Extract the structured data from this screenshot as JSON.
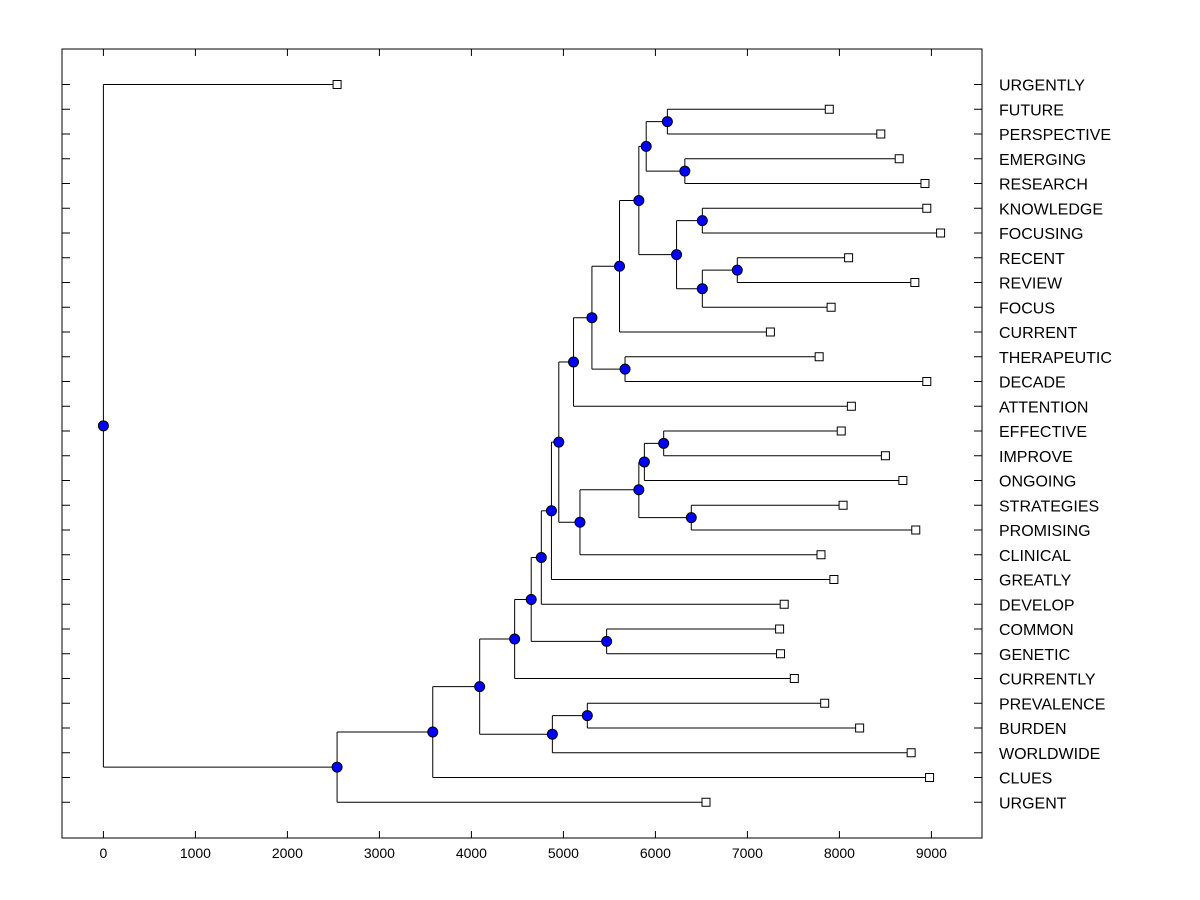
{
  "chart_data": {
    "type": "dendrogram",
    "title": "",
    "xlabel": "",
    "ylabel": "",
    "xlim": [
      -450,
      9550
    ],
    "xticks": [
      0,
      1000,
      2000,
      3000,
      4000,
      5000,
      6000,
      7000,
      8000,
      9000
    ],
    "xtick_labels": [
      "0",
      "1000",
      "2000",
      "3000",
      "4000",
      "5000",
      "6000",
      "7000",
      "8000",
      "9000"
    ],
    "colors": {
      "node_fill": "#0000ff",
      "node_stroke": "#000000",
      "line": "#000000",
      "leaf_fill": "#ffffff"
    },
    "leaves": [
      {
        "label": "URGENTLY",
        "value": 2540
      },
      {
        "label": "FUTURE",
        "value": 7890
      },
      {
        "label": "PERSPECTIVE",
        "value": 8450
      },
      {
        "label": "EMERGING",
        "value": 8650
      },
      {
        "label": "RESEARCH",
        "value": 8930
      },
      {
        "label": "KNOWLEDGE",
        "value": 8950
      },
      {
        "label": "FOCUSING",
        "value": 9100
      },
      {
        "label": "RECENT",
        "value": 8100
      },
      {
        "label": "REVIEW",
        "value": 8820
      },
      {
        "label": "FOCUS",
        "value": 7910
      },
      {
        "label": "CURRENT",
        "value": 7250
      },
      {
        "label": "THERAPEUTIC",
        "value": 7780
      },
      {
        "label": "DECADE",
        "value": 8950
      },
      {
        "label": "ATTENTION",
        "value": 8130
      },
      {
        "label": "EFFECTIVE",
        "value": 8020
      },
      {
        "label": "IMPROVE",
        "value": 8500
      },
      {
        "label": "ONGOING",
        "value": 8690
      },
      {
        "label": "STRATEGIES",
        "value": 8040
      },
      {
        "label": "PROMISING",
        "value": 8830
      },
      {
        "label": "CLINICAL",
        "value": 7800
      },
      {
        "label": "GREATLY",
        "value": 7940
      },
      {
        "label": "DEVELOP",
        "value": 7400
      },
      {
        "label": "COMMON",
        "value": 7350
      },
      {
        "label": "GENETIC",
        "value": 7360
      },
      {
        "label": "CURRENTLY",
        "value": 7510
      },
      {
        "label": "PREVALENCE",
        "value": 7840
      },
      {
        "label": "BURDEN",
        "value": 8220
      },
      {
        "label": "WORLDWIDE",
        "value": 8780
      },
      {
        "label": "CLUES",
        "value": 8980
      },
      {
        "label": "URGENT",
        "value": 6550
      }
    ],
    "nodes": [
      {
        "id": "n1",
        "value": 6130,
        "children": [
          "L1",
          "L2"
        ]
      },
      {
        "id": "n2",
        "value": 6320,
        "children": [
          "L3",
          "L4"
        ]
      },
      {
        "id": "n3",
        "value": 5900,
        "children": [
          "n1",
          "n2"
        ]
      },
      {
        "id": "n4",
        "value": 6510,
        "children": [
          "L5",
          "L6"
        ]
      },
      {
        "id": "n5",
        "value": 6890,
        "children": [
          "L7",
          "L8"
        ]
      },
      {
        "id": "n6",
        "value": 6510,
        "children": [
          "n5",
          "L9"
        ]
      },
      {
        "id": "n7",
        "value": 6230,
        "children": [
          "n4",
          "n6"
        ]
      },
      {
        "id": "n8",
        "value": 5820,
        "children": [
          "n3",
          "n7"
        ]
      },
      {
        "id": "n9",
        "value": 5610,
        "children": [
          "n8",
          "L10"
        ]
      },
      {
        "id": "n10",
        "value": 5670,
        "children": [
          "L11",
          "L12"
        ]
      },
      {
        "id": "n11",
        "value": 5310,
        "children": [
          "n9",
          "n10"
        ]
      },
      {
        "id": "n12",
        "value": 5110,
        "children": [
          "n11",
          "L13"
        ]
      },
      {
        "id": "n13",
        "value": 6090,
        "children": [
          "L14",
          "L15"
        ]
      },
      {
        "id": "n14",
        "value": 5880,
        "children": [
          "n13",
          "L16"
        ]
      },
      {
        "id": "n15",
        "value": 6390,
        "children": [
          "L17",
          "L18"
        ]
      },
      {
        "id": "n16",
        "value": 5820,
        "children": [
          "n14",
          "n15"
        ]
      },
      {
        "id": "n17",
        "value": 5180,
        "children": [
          "n16",
          "L19"
        ]
      },
      {
        "id": "n18",
        "value": 4950,
        "children": [
          "n12",
          "n17"
        ]
      },
      {
        "id": "n19",
        "value": 4870,
        "children": [
          "n18",
          "L20"
        ]
      },
      {
        "id": "n20",
        "value": 4760,
        "children": [
          "n19",
          "L21"
        ]
      },
      {
        "id": "n21",
        "value": 5470,
        "children": [
          "L22",
          "L23"
        ]
      },
      {
        "id": "n22",
        "value": 4650,
        "children": [
          "n20",
          "n21"
        ]
      },
      {
        "id": "n23",
        "value": 4470,
        "children": [
          "n22",
          "L24"
        ]
      },
      {
        "id": "n24",
        "value": 5260,
        "children": [
          "L25",
          "L26"
        ]
      },
      {
        "id": "n25",
        "value": 4880,
        "children": [
          "n24",
          "L27"
        ]
      },
      {
        "id": "n26",
        "value": 4090,
        "children": [
          "n23",
          "n25"
        ]
      },
      {
        "id": "n27",
        "value": 3580,
        "children": [
          "n26",
          "L28"
        ]
      },
      {
        "id": "n28",
        "value": 2540,
        "children": [
          "n27",
          "L29"
        ]
      },
      {
        "id": "n29",
        "value": 0,
        "children": [
          "L0",
          "n28"
        ]
      }
    ]
  }
}
